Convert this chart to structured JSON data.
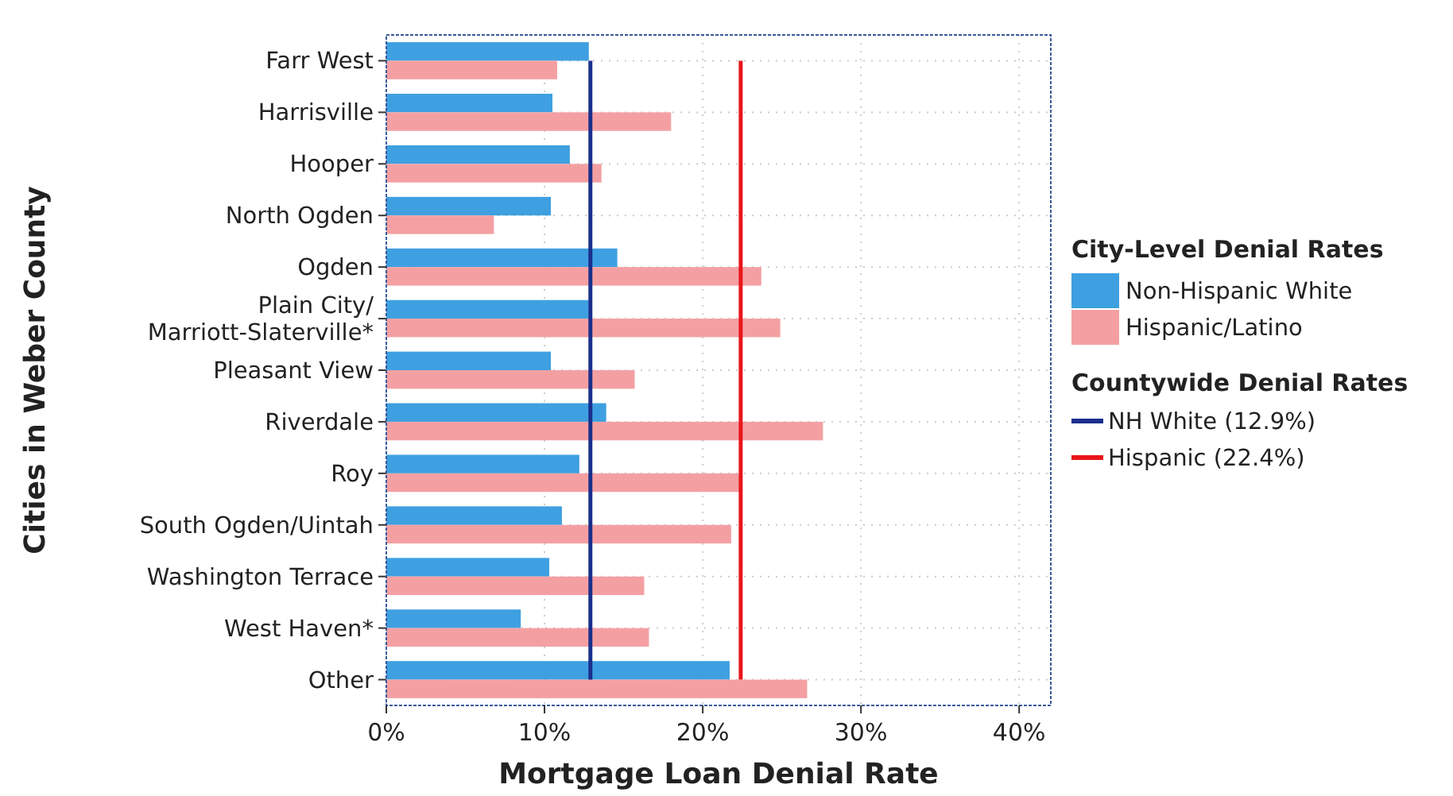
{
  "chart_data": {
    "type": "bar",
    "orientation": "horizontal",
    "xlabel": "Mortgage Loan Denial Rate",
    "ylabel": "Cities in Weber County",
    "legend_title": "City-Level Denial Rates",
    "categories": [
      "Farr West",
      "Harrisville",
      "Hooper",
      "North Ogden",
      "Ogden",
      "Plain City/\nMarriott-Slaterville*",
      "Pleasant View",
      "Riverdale",
      "Roy",
      "South Ogden/Uintah",
      "Washington Terrace",
      "West Haven*",
      "Other"
    ],
    "series": [
      {
        "name": "Non-Hispanic White",
        "color": "#3ea0e0",
        "values": [
          12.8,
          10.5,
          11.6,
          10.4,
          14.6,
          12.8,
          10.4,
          13.9,
          12.2,
          11.1,
          10.3,
          8.5,
          21.7
        ]
      },
      {
        "name": "Hispanic/Latino",
        "color": "#f4a0a3",
        "values": [
          10.8,
          18.0,
          13.6,
          6.8,
          23.7,
          24.9,
          15.7,
          27.6,
          22.3,
          21.8,
          16.3,
          16.6,
          26.6
        ]
      },
      {
        "type": "line",
        "name": "NH White (12.9%)",
        "color": "#1a2f8c",
        "values": [
          12.9,
          12.9,
          12.9,
          12.9,
          12.9,
          12.9,
          12.9,
          12.9,
          12.9,
          12.9,
          12.9,
          12.9,
          12.9
        ]
      },
      {
        "type": "line",
        "name": "Hispanic (22.4%)",
        "color": "#e8161b",
        "values": [
          22.4,
          22.4,
          22.4,
          22.4,
          22.4,
          22.4,
          22.4,
          22.4,
          22.4,
          22.4,
          22.4,
          22.4,
          22.4
        ]
      }
    ],
    "xlim": [
      0,
      42
    ],
    "xticks": [
      {
        "value": 0,
        "label": "0%"
      },
      {
        "value": 10,
        "label": "10%"
      },
      {
        "value": 20,
        "label": "20%"
      },
      {
        "value": 30,
        "label": "30%"
      },
      {
        "value": 40,
        "label": "40%"
      }
    ],
    "annotations": [
      "Countywide Denial Rates"
    ],
    "grid": true,
    "legend": "right"
  }
}
